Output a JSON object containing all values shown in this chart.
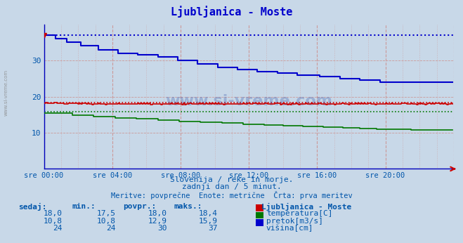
{
  "title": "Ljubljanica - Moste",
  "title_color": "#0000cc",
  "bg_color": "#c8d8e8",
  "plot_bg_color": "#c8d8e8",
  "watermark": "www.si-vreme.com",
  "subtitle1": "Slovenija / reke in morje.",
  "subtitle2": "zadnji dan / 5 minut.",
  "subtitle3": "Meritve: povprečne  Enote: metrične  Črta: prva meritev",
  "xlim": [
    0,
    288
  ],
  "ylim": [
    0,
    40
  ],
  "yticks": [
    10,
    20,
    30
  ],
  "xtick_labels": [
    "sre 00:00",
    "sre 04:00",
    "sre 08:00",
    "sre 12:00",
    "sre 16:00",
    "sre 20:00"
  ],
  "xtick_positions": [
    0,
    48,
    96,
    144,
    192,
    240
  ],
  "temp_color": "#cc0000",
  "flow_color": "#007700",
  "height_color": "#0000cc",
  "temp_dotted": 18.4,
  "flow_dotted": 15.9,
  "height_dotted": 37.0,
  "legend_title": "Ljubljanica - Moste",
  "table_headers": [
    "sedaj:",
    "min.:",
    "povpr.:",
    "maks.:"
  ],
  "temp_row": [
    "18,0",
    "17,5",
    "18,0",
    "18,4"
  ],
  "flow_row": [
    "10,8",
    "10,8",
    "12,9",
    "15,9"
  ],
  "height_row": [
    "24",
    "24",
    "30",
    "37"
  ],
  "row_labels": [
    "temperatura[C]",
    "pretok[m3/s]",
    "višina[cm]"
  ],
  "text_color": "#0055aa",
  "grid_v_color": "#cc9999",
  "grid_h_color": "#cc9999",
  "spine_color": "#0000bb"
}
